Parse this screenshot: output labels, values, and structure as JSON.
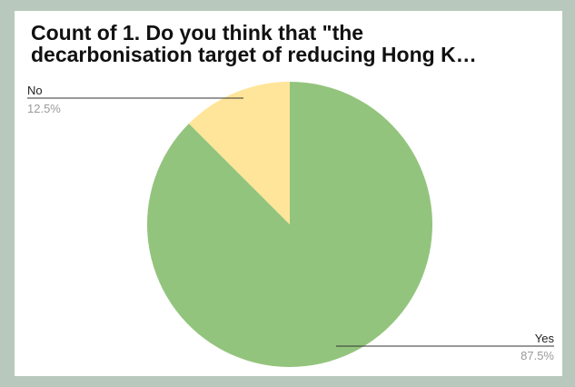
{
  "chart_data": {
    "type": "pie",
    "title": "Count of 1. Do you think that \"the\ndecarbonisation target of reducing Hong K…",
    "categories": [
      "Yes",
      "No"
    ],
    "values": [
      87.5,
      12.5
    ],
    "percent_labels": [
      "87.5%",
      "12.5%"
    ],
    "colors": [
      "#93c47d",
      "#ffe599"
    ],
    "legend": "labels-with-leader-lines"
  }
}
